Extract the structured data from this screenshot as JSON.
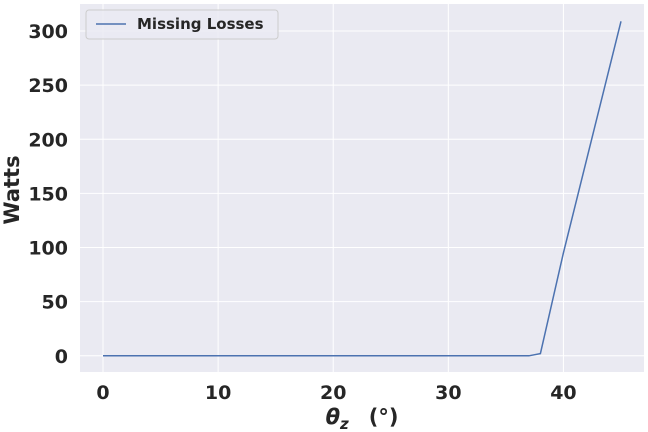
{
  "chart_data": {
    "type": "line",
    "title": "",
    "xlabel_symbol": "θ",
    "xlabel_subscript": "z",
    "xlabel_unit": "(°)",
    "ylabel": "Watts",
    "xlim": [
      -2,
      47
    ],
    "ylim": [
      -15,
      325
    ],
    "xticks": [
      0,
      10,
      20,
      30,
      40
    ],
    "yticks": [
      0,
      50,
      100,
      150,
      200,
      250,
      300
    ],
    "grid": true,
    "legend_position": "top-left",
    "background": "#EAEAF2",
    "grid_color": "#FFFFFF",
    "series": [
      {
        "name": "Missing Losses",
        "color": "#4C72B0",
        "x": [
          0,
          5,
          10,
          15,
          20,
          25,
          30,
          35,
          37,
          38,
          40,
          45
        ],
        "y": [
          0,
          0,
          0,
          0,
          0,
          0,
          0,
          0,
          0,
          2,
          95,
          309
        ]
      }
    ]
  }
}
